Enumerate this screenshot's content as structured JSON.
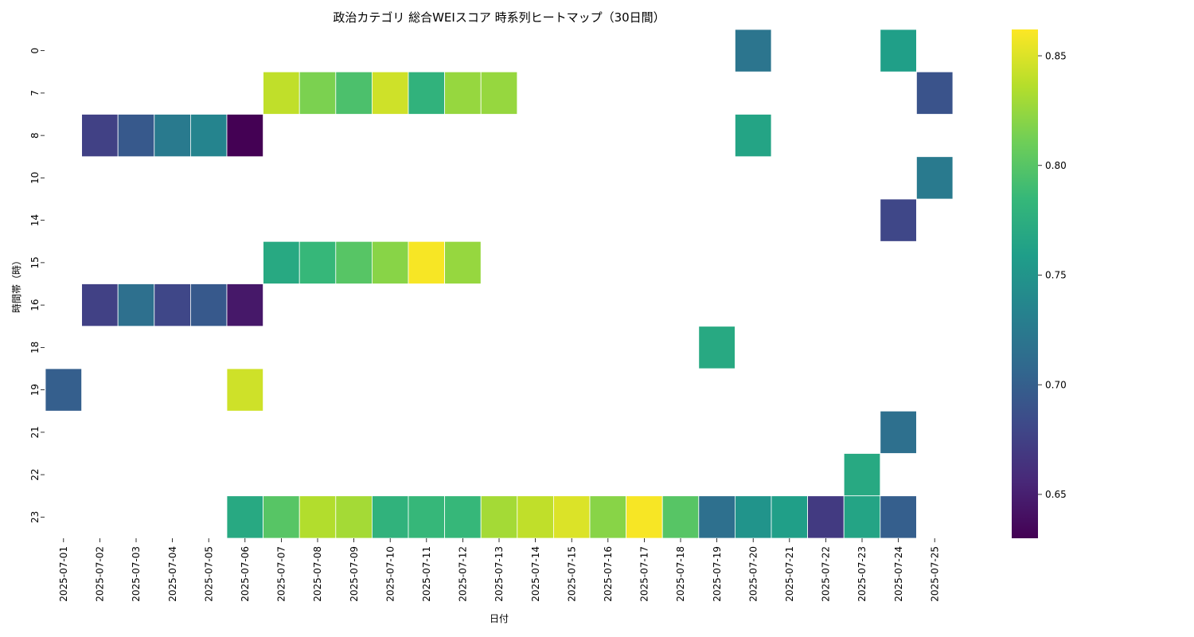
{
  "chart_data": {
    "type": "heatmap",
    "title": "政治カテゴリ 総合WEIスコア 時系列ヒートマップ（30日間）",
    "xlabel": "日付",
    "ylabel": "時間帯（時）",
    "x": [
      "2025-07-01",
      "2025-07-02",
      "2025-07-03",
      "2025-07-04",
      "2025-07-05",
      "2025-07-06",
      "2025-07-07",
      "2025-07-08",
      "2025-07-09",
      "2025-07-10",
      "2025-07-11",
      "2025-07-12",
      "2025-07-13",
      "2025-07-14",
      "2025-07-15",
      "2025-07-16",
      "2025-07-17",
      "2025-07-18",
      "2025-07-19",
      "2025-07-20",
      "2025-07-21",
      "2025-07-22",
      "2025-07-23",
      "2025-07-24",
      "2025-07-25"
    ],
    "y": [
      "0",
      "7",
      "8",
      "10",
      "14",
      "15",
      "16",
      "18",
      "19",
      "21",
      "22",
      "23"
    ],
    "values": [
      [
        null,
        null,
        null,
        null,
        null,
        null,
        null,
        null,
        null,
        null,
        null,
        null,
        null,
        null,
        null,
        null,
        null,
        null,
        null,
        0.72,
        null,
        null,
        null,
        0.76,
        null
      ],
      [
        null,
        null,
        null,
        null,
        null,
        null,
        0.84,
        0.815,
        0.795,
        0.845,
        0.78,
        0.825,
        0.825,
        null,
        null,
        null,
        null,
        null,
        null,
        null,
        null,
        null,
        null,
        null,
        0.69
      ],
      [
        null,
        0.675,
        0.695,
        0.725,
        0.735,
        0.63,
        null,
        null,
        null,
        null,
        null,
        null,
        null,
        null,
        null,
        null,
        null,
        null,
        null,
        0.765,
        null,
        null,
        null,
        null,
        null
      ],
      [
        null,
        null,
        null,
        null,
        null,
        null,
        null,
        null,
        null,
        null,
        null,
        null,
        null,
        null,
        null,
        null,
        null,
        null,
        null,
        null,
        null,
        null,
        null,
        null,
        0.725
      ],
      [
        null,
        null,
        null,
        null,
        null,
        null,
        null,
        null,
        null,
        null,
        null,
        null,
        null,
        null,
        null,
        null,
        null,
        null,
        null,
        null,
        null,
        null,
        null,
        0.68,
        null
      ],
      [
        null,
        null,
        null,
        null,
        null,
        null,
        0.77,
        0.785,
        0.8,
        0.82,
        0.86,
        0.825,
        null,
        null,
        null,
        null,
        null,
        null,
        null,
        null,
        null,
        null,
        null,
        null,
        null
      ],
      [
        null,
        0.675,
        0.715,
        0.68,
        0.695,
        0.645,
        null,
        null,
        null,
        null,
        null,
        null,
        null,
        null,
        null,
        null,
        null,
        null,
        null,
        null,
        null,
        null,
        null,
        null,
        null
      ],
      [
        null,
        null,
        null,
        null,
        null,
        null,
        null,
        null,
        null,
        null,
        null,
        null,
        null,
        null,
        null,
        null,
        null,
        null,
        0.77,
        null,
        null,
        null,
        null,
        null,
        null
      ],
      [
        0.7,
        null,
        null,
        null,
        null,
        0.845,
        null,
        null,
        null,
        null,
        null,
        null,
        null,
        null,
        null,
        null,
        null,
        null,
        null,
        null,
        null,
        null,
        null,
        null,
        null
      ],
      [
        null,
        null,
        null,
        null,
        null,
        null,
        null,
        null,
        null,
        null,
        null,
        null,
        null,
        null,
        null,
        null,
        null,
        null,
        null,
        null,
        null,
        null,
        null,
        0.715,
        null
      ],
      [
        null,
        null,
        null,
        null,
        null,
        null,
        null,
        null,
        null,
        null,
        null,
        null,
        null,
        null,
        null,
        null,
        null,
        null,
        null,
        null,
        null,
        null,
        0.77,
        null,
        null
      ],
      [
        null,
        null,
        null,
        null,
        null,
        0.77,
        0.8,
        0.835,
        0.83,
        0.78,
        0.785,
        0.785,
        0.83,
        0.84,
        0.85,
        0.82,
        0.86,
        0.8,
        0.715,
        0.75,
        0.76,
        0.67,
        0.765,
        0.7,
        null
      ]
    ],
    "colorbar": {
      "min": 0.63,
      "max": 0.862,
      "ticks": [
        0.65,
        0.7,
        0.75,
        0.8,
        0.85
      ],
      "tick_labels": [
        "0.65",
        "0.70",
        "0.75",
        "0.80",
        "0.85"
      ],
      "colormap": "viridis"
    },
    "colors": {
      "viridis": [
        "#440154",
        "#482878",
        "#3e4989",
        "#31688e",
        "#26828e",
        "#1f9e89",
        "#35b779",
        "#6ece58",
        "#b5de2b",
        "#fde725"
      ],
      "background": "#ffffff",
      "cell_border": "#ffffff"
    }
  }
}
